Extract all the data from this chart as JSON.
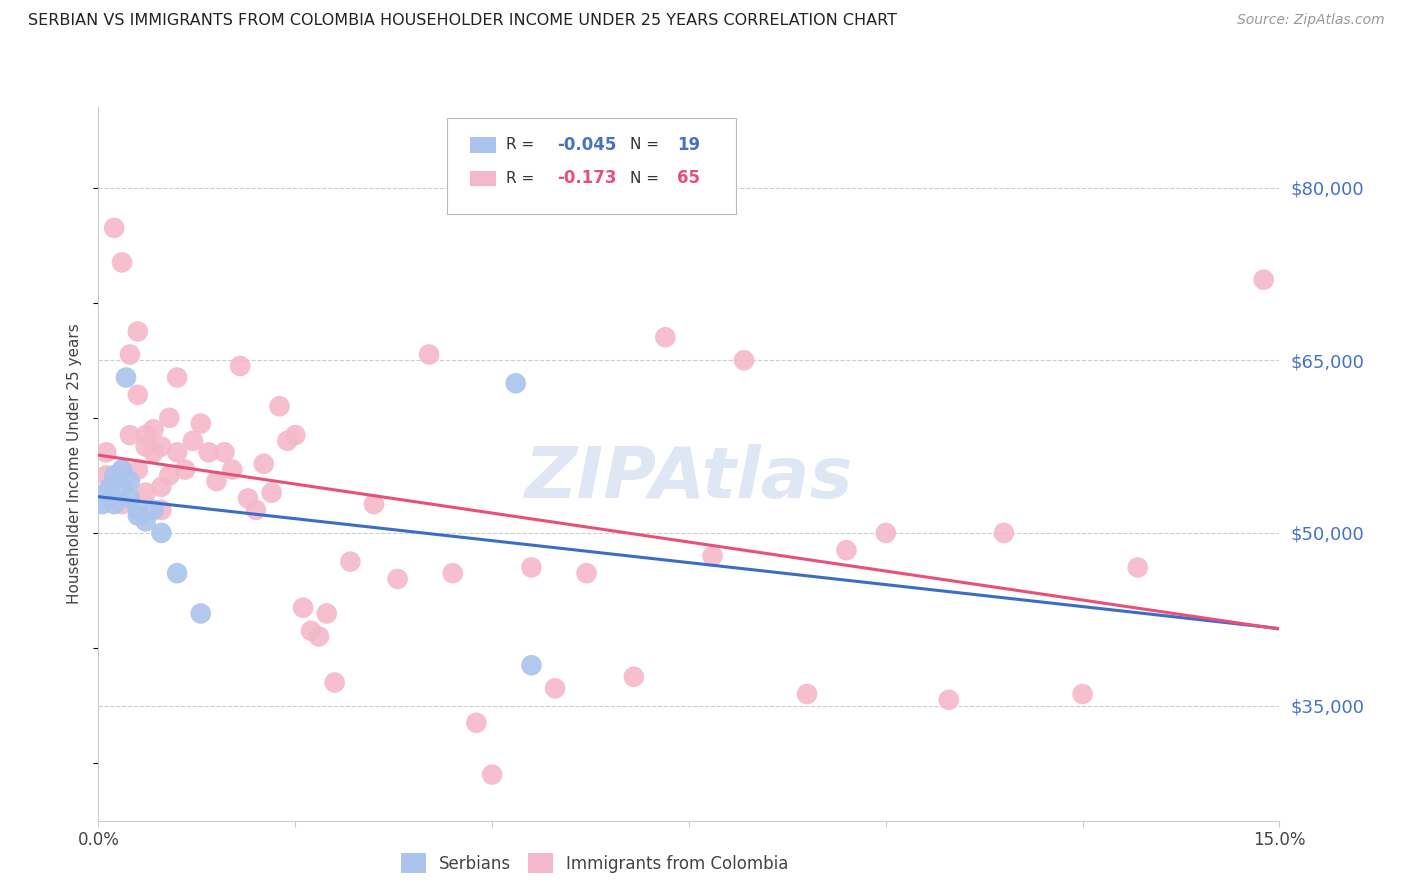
{
  "title": "SERBIAN VS IMMIGRANTS FROM COLOMBIA HOUSEHOLDER INCOME UNDER 25 YEARS CORRELATION CHART",
  "source": "Source: ZipAtlas.com",
  "ylabel": "Householder Income Under 25 years",
  "ytick_labels": [
    "$80,000",
    "$65,000",
    "$50,000",
    "$35,000"
  ],
  "ytick_values": [
    80000,
    65000,
    50000,
    35000
  ],
  "ylim": [
    25000,
    87000
  ],
  "xlim": [
    0.0,
    0.15
  ],
  "legend_serbian_R": "-0.045",
  "legend_serbian_N": "19",
  "legend_colombia_R": "-0.173",
  "legend_colombia_N": "65",
  "serbian_color": "#aac4ed",
  "colombia_color": "#f4b8cb",
  "serbian_line_color": "#3a6cc8",
  "colombia_line_color": "#e8507a",
  "watermark": "ZIPAtlas",
  "serbian_x": [
    0.0005,
    0.001,
    0.0015,
    0.002,
    0.002,
    0.003,
    0.003,
    0.0035,
    0.004,
    0.004,
    0.005,
    0.005,
    0.006,
    0.007,
    0.008,
    0.01,
    0.013,
    0.053,
    0.055
  ],
  "serbian_y": [
    52500,
    53500,
    54000,
    55000,
    52500,
    55500,
    54000,
    63500,
    54500,
    53000,
    52000,
    51500,
    51000,
    52000,
    50000,
    46500,
    43000,
    63000,
    38500
  ],
  "colombia_x": [
    0.001,
    0.001,
    0.002,
    0.003,
    0.003,
    0.003,
    0.004,
    0.004,
    0.005,
    0.005,
    0.005,
    0.006,
    0.006,
    0.006,
    0.007,
    0.007,
    0.008,
    0.008,
    0.008,
    0.009,
    0.009,
    0.01,
    0.01,
    0.011,
    0.012,
    0.013,
    0.014,
    0.015,
    0.016,
    0.017,
    0.018,
    0.019,
    0.02,
    0.021,
    0.022,
    0.023,
    0.024,
    0.025,
    0.026,
    0.027,
    0.028,
    0.029,
    0.03,
    0.032,
    0.035,
    0.038,
    0.042,
    0.045,
    0.048,
    0.05,
    0.055,
    0.058,
    0.062,
    0.068,
    0.072,
    0.078,
    0.082,
    0.09,
    0.095,
    0.1,
    0.108,
    0.115,
    0.125,
    0.132,
    0.148
  ],
  "colombia_y": [
    55000,
    57000,
    76500,
    55500,
    52500,
    73500,
    65500,
    58500,
    67500,
    62000,
    55500,
    57500,
    58500,
    53500,
    57000,
    59000,
    54000,
    52000,
    57500,
    60000,
    55000,
    63500,
    57000,
    55500,
    58000,
    59500,
    57000,
    54500,
    57000,
    55500,
    64500,
    53000,
    52000,
    56000,
    53500,
    61000,
    58000,
    58500,
    43500,
    41500,
    41000,
    43000,
    37000,
    47500,
    52500,
    46000,
    65500,
    46500,
    33500,
    29000,
    47000,
    36500,
    46500,
    37500,
    67000,
    48000,
    65000,
    36000,
    48500,
    50000,
    35500,
    50000,
    36000,
    47000,
    72000
  ]
}
